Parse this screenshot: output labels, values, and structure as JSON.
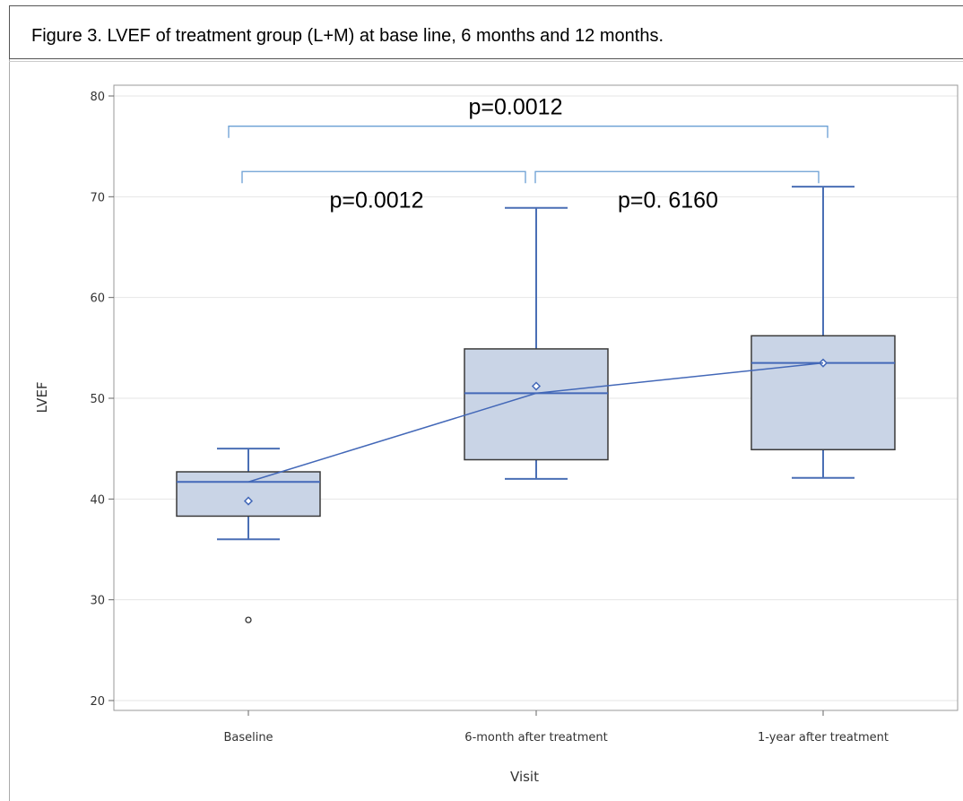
{
  "figure": {
    "caption": "Figure 3. LVEF of treatment group (L+M) at base line, 6 months and 12 months."
  },
  "colors": {
    "box_fill": "#c9d4e6",
    "box_edge": "#3a3a3a",
    "whisker": "#4a6fb5",
    "mean_line": "#4368b8",
    "bracket": "#6a9fd4",
    "grid": "#e6e6e6"
  },
  "chart_data": {
    "type": "box",
    "xlabel": "Visit",
    "ylabel": "LVEF",
    "ylim": [
      20,
      80
    ],
    "yticks": [
      20,
      30,
      40,
      50,
      60,
      70,
      80
    ],
    "grid": true,
    "categories": [
      "Baseline",
      "6-month after treatment",
      "1-year after treatment"
    ],
    "boxes": [
      {
        "category": "Baseline",
        "whisker_low": 36,
        "q1": 38.3,
        "median": 41.7,
        "q3": 42.7,
        "whisker_high": 45,
        "mean": 39.8,
        "outliers": [
          28
        ]
      },
      {
        "category": "6-month after treatment",
        "whisker_low": 42,
        "q1": 43.9,
        "median": 50.5,
        "q3": 54.9,
        "whisker_high": 68.9,
        "mean": 51.2,
        "outliers": []
      },
      {
        "category": "1-year after treatment",
        "whisker_low": 42.1,
        "q1": 44.9,
        "median": 53.5,
        "q3": 56.2,
        "whisker_high": 71,
        "mean": 53.5,
        "outliers": []
      }
    ],
    "trend_line": "median",
    "annotations": [
      {
        "from": 0,
        "to": 2,
        "text": "p=0.0012",
        "y": 77
      },
      {
        "from": 0,
        "to": 1,
        "text": "p=0.0012",
        "y": 72.5
      },
      {
        "from": 1,
        "to": 2,
        "text": "p=0. 6160",
        "y": 72.5
      }
    ]
  }
}
